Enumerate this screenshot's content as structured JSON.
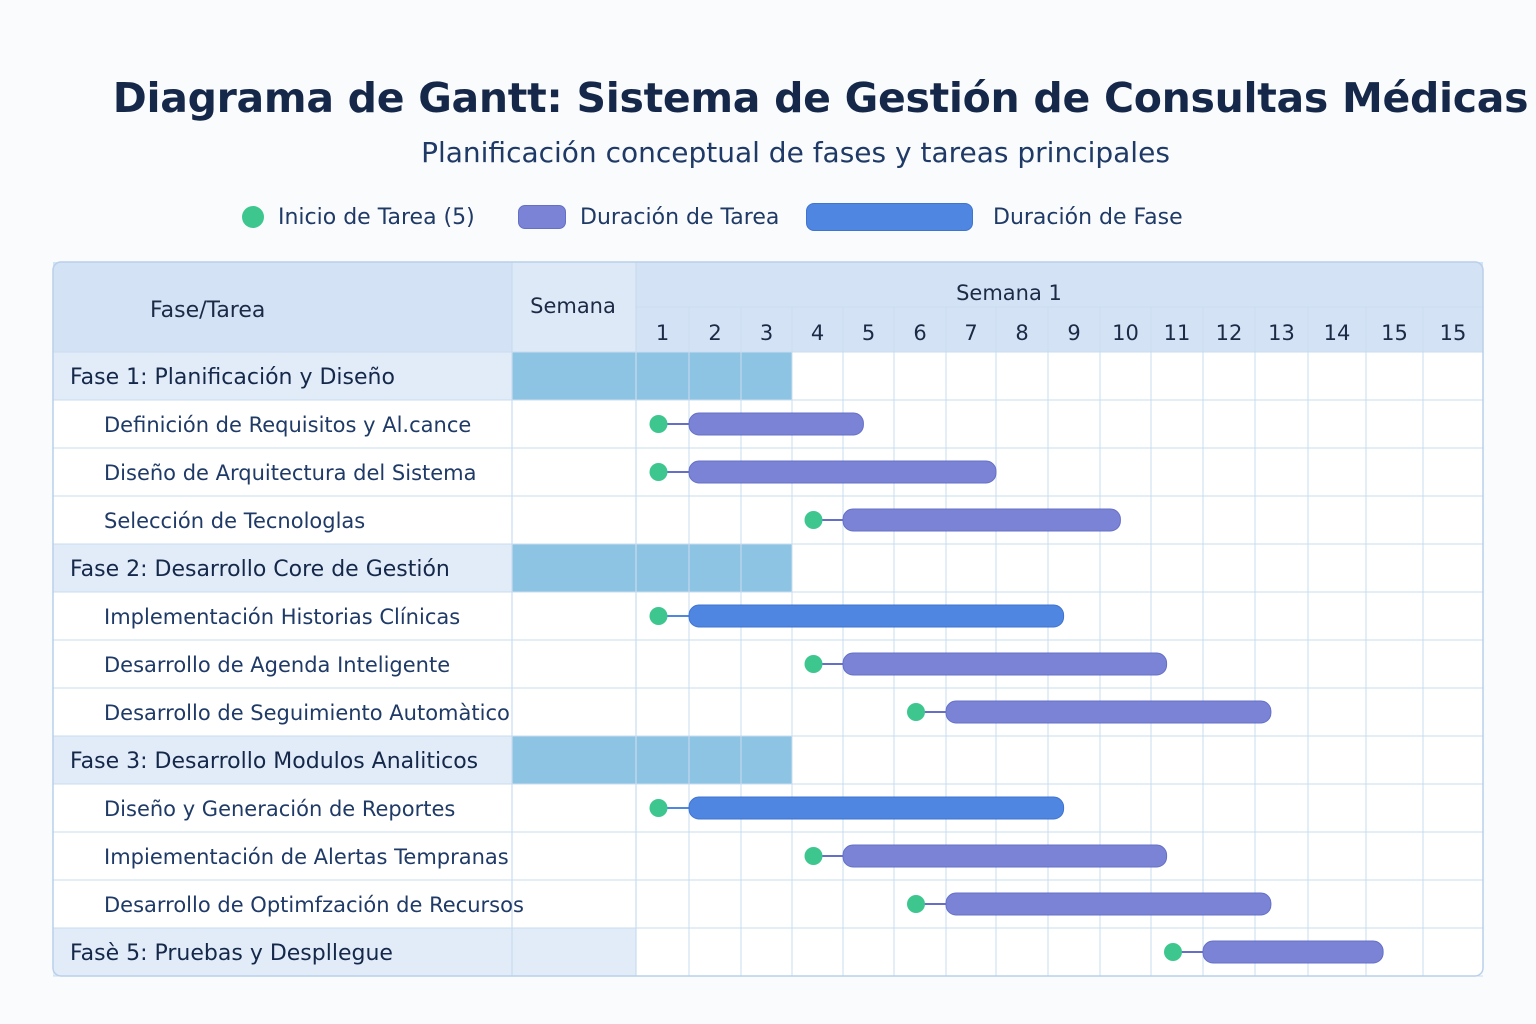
{
  "title": "Diagrama de Gantt: Sistema de Gestión de Consultas Médicas",
  "subtitle": "Planificación conceptual de fases y tareas principales",
  "legend": {
    "start": "Inicio de Tarea (5)",
    "task": "Duración de Tarea",
    "phase": "Duración de Fase"
  },
  "colors": {
    "start_dot": "#3dc78f",
    "task_bar": "#7b83d6",
    "phase_bar": "#4f86e1",
    "phase_cell": "#8ec4e3",
    "header_bg": "#d3e3f5",
    "phase_row_bg": "#e1ecf8",
    "grid": "#c9dcef"
  },
  "chart_data": {
    "type": "gantt",
    "header": {
      "col_task": "Fase/Tarea",
      "col_week": "Semana",
      "week_group": "Semana 1",
      "weeks": [
        "1",
        "2",
        "3",
        "4",
        "5",
        "6",
        "7",
        "8",
        "9",
        "10",
        "11",
        "12",
        "13",
        "14",
        "15",
        "15"
      ]
    },
    "rows": [
      {
        "kind": "phase",
        "label": "Fase 1: Planificación y Diseño",
        "phase_span": [
          1,
          3
        ]
      },
      {
        "kind": "task",
        "label": "Definición de Requisitos y Al.cance",
        "start": 1,
        "end": 5.4,
        "bar": "task"
      },
      {
        "kind": "task",
        "label": "Diseño de Arquitectura del Sistema",
        "start": 1,
        "end": 8,
        "bar": "task"
      },
      {
        "kind": "task",
        "label": "Selección de Tecnologlas",
        "start": 4,
        "end": 10.4,
        "bar": "task"
      },
      {
        "kind": "phase",
        "label": "Fase 2: Desarrollo Core de Gestión",
        "phase_span": [
          1,
          3
        ]
      },
      {
        "kind": "task",
        "label": "Implementación Historias Clínicas",
        "start": 1,
        "end": 9.3,
        "bar": "phase"
      },
      {
        "kind": "task",
        "label": "Desarrollo de Agenda Inteligente",
        "start": 4,
        "end": 11.3,
        "bar": "task"
      },
      {
        "kind": "task",
        "label": "Desarrollo de Seguimiento Automàtico",
        "start": 6,
        "end": 13.3,
        "bar": "task"
      },
      {
        "kind": "phase",
        "label": "Fase 3: Desarrollo Modulos Analiticos",
        "phase_span": [
          1,
          3
        ]
      },
      {
        "kind": "task",
        "label": "Diseño y Generación de Reportes",
        "start": 1,
        "end": 9.3,
        "bar": "phase"
      },
      {
        "kind": "task",
        "label": "Impiementación de Alertas Tempranas",
        "start": 4,
        "end": 11.3,
        "bar": "task"
      },
      {
        "kind": "task",
        "label": "Desarrollo de Optimfzación de Recursos",
        "start": 6,
        "end": 13.3,
        "bar": "task"
      },
      {
        "kind": "phase",
        "label": "Fasè 5: Pruebas y Despllegue",
        "task_bar": {
          "start": 11,
          "end": 15.3
        }
      }
    ]
  }
}
